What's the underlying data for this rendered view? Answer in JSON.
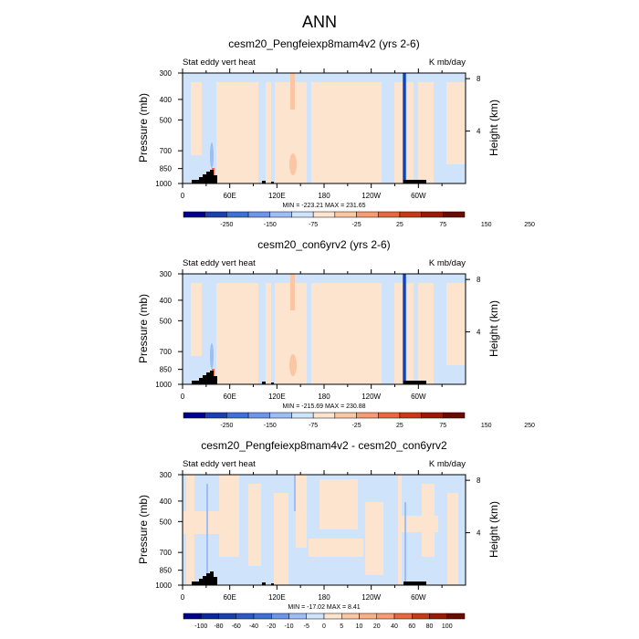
{
  "figure_title": "ANN",
  "chart_data": [
    {
      "type": "heatmap",
      "title": "cesm20_Pengfeiexp8mam4v2 (yrs 2-6)",
      "left_label": "Stat eddy vert heat",
      "right_label": "K mb/day",
      "ylabel": "Pressure (mb)",
      "ylabel_right": "Height (km)",
      "xticks": [
        "0",
        "60E",
        "120E",
        "180",
        "120W",
        "60W"
      ],
      "xtick_lon": [
        0,
        60,
        120,
        180,
        240,
        300
      ],
      "xlim": [
        0,
        360
      ],
      "yticks": [
        "300",
        "400",
        "500",
        "700",
        "850",
        "1000"
      ],
      "ytick_p": [
        300,
        400,
        500,
        700,
        850,
        1000
      ],
      "ylim": [
        1000,
        300
      ],
      "yscale": "log",
      "height_ticks": [
        "8",
        "4"
      ],
      "height_km": [
        8,
        4
      ],
      "stats": "MIN = -223.21   MAX = 231.65",
      "levels": [
        "-250",
        "-150",
        "-75",
        "-25",
        "25",
        "75",
        "150",
        "250"
      ],
      "colors": [
        "#00008f",
        "#1a3fb0",
        "#3f70d8",
        "#6d96e8",
        "#9dbdf5",
        "#cfe3fb",
        "#fde4cf",
        "#fbc6a3",
        "#f59c72",
        "#e8683f",
        "#c83a17",
        "#9a1a06",
        "#6b0a00"
      ]
    },
    {
      "type": "heatmap",
      "title": "cesm20_con6yrv2 (yrs 2-6)",
      "left_label": "Stat eddy vert heat",
      "right_label": "K mb/day",
      "ylabel": "Pressure (mb)",
      "ylabel_right": "Height (km)",
      "xticks": [
        "0",
        "60E",
        "120E",
        "180",
        "120W",
        "60W"
      ],
      "xtick_lon": [
        0,
        60,
        120,
        180,
        240,
        300
      ],
      "xlim": [
        0,
        360
      ],
      "yticks": [
        "300",
        "400",
        "500",
        "700",
        "850",
        "1000"
      ],
      "ytick_p": [
        300,
        400,
        500,
        700,
        850,
        1000
      ],
      "ylim": [
        1000,
        300
      ],
      "yscale": "log",
      "height_ticks": [
        "8",
        "4"
      ],
      "height_km": [
        8,
        4
      ],
      "stats": "MIN = -215.69   MAX = 230.88",
      "levels": [
        "-250",
        "-150",
        "-75",
        "-25",
        "25",
        "75",
        "150",
        "250"
      ],
      "colors": [
        "#00008f",
        "#1a3fb0",
        "#3f70d8",
        "#6d96e8",
        "#9dbdf5",
        "#cfe3fb",
        "#fde4cf",
        "#fbc6a3",
        "#f59c72",
        "#e8683f",
        "#c83a17",
        "#9a1a06",
        "#6b0a00"
      ]
    },
    {
      "type": "heatmap",
      "title": "cesm20_Pengfeiexp8mam4v2 - cesm20_con6yrv2",
      "left_label": "Stat eddy vert heat",
      "right_label": "K mb/day",
      "ylabel": "Pressure (mb)",
      "ylabel_right": "Height (km)",
      "xticks": [
        "0",
        "60E",
        "120E",
        "180",
        "120W",
        "60W"
      ],
      "xtick_lon": [
        0,
        60,
        120,
        180,
        240,
        300
      ],
      "xlim": [
        0,
        360
      ],
      "yticks": [
        "300",
        "400",
        "500",
        "700",
        "850",
        "1000"
      ],
      "ytick_p": [
        300,
        400,
        500,
        700,
        850,
        1000
      ],
      "ylim": [
        1000,
        300
      ],
      "yscale": "log",
      "height_ticks": [
        "8",
        "4"
      ],
      "height_km": [
        8,
        4
      ],
      "stats": "MIN = -17.02   MAX =  8.41",
      "levels": [
        "-100",
        "-80",
        "-60",
        "-40",
        "-20",
        "-10",
        "-5",
        "0",
        "5",
        "10",
        "20",
        "40",
        "60",
        "80",
        "100"
      ],
      "colors": [
        "#00008f",
        "#0a28a0",
        "#1a3fb0",
        "#2d58c8",
        "#3f70d8",
        "#6d96e8",
        "#9dbdf5",
        "#cfe3fb",
        "#fde4cf",
        "#fbc6a3",
        "#f8b088",
        "#f59c72",
        "#e8683f",
        "#c83a17",
        "#9a1a06",
        "#6b0a00"
      ]
    }
  ]
}
